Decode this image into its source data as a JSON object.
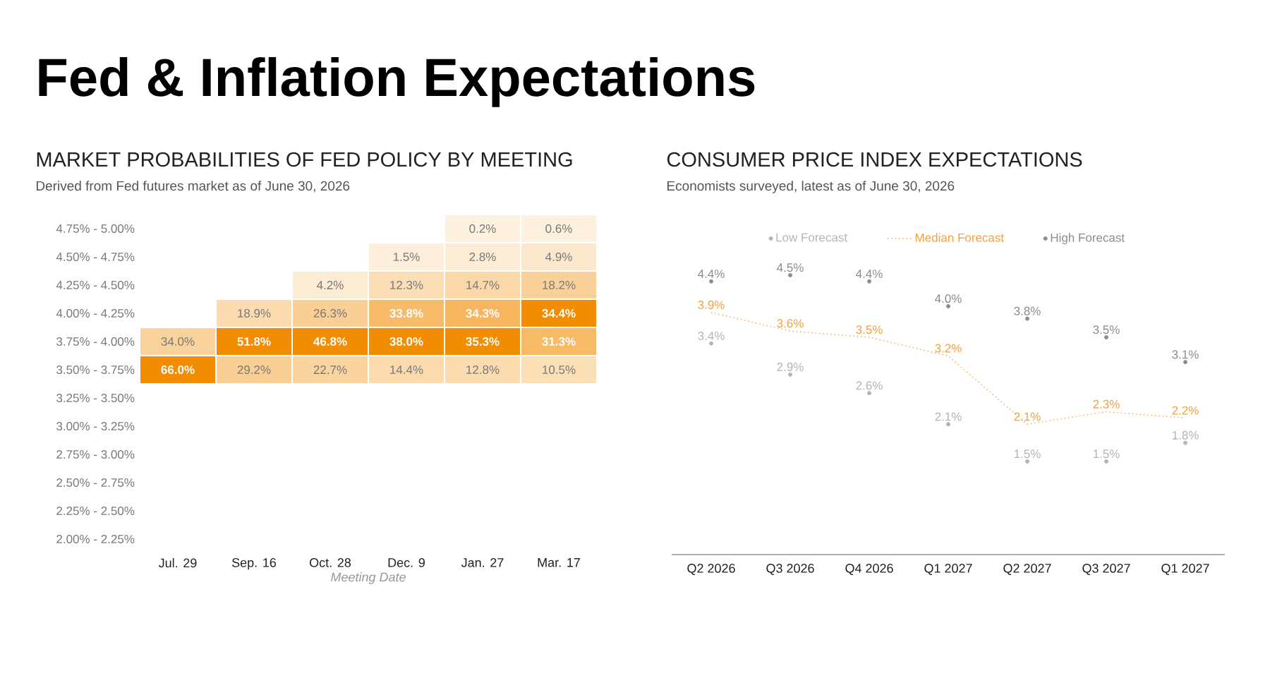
{
  "chart_data": [
    {
      "type": "heatmap",
      "title": "MARKET PROBABILITIES OF FED POLICY BY MEETING",
      "subtitle": "Derived from Fed futures market as of June 30, 2026",
      "xlabel": "Meeting Date",
      "annotations": [
        "Fed & Inflation Expectations"
      ],
      "color": "#f28c00",
      "categories": [
        "Jul. 29",
        "Sep. 16",
        "Oct. 28",
        "Dec. 9",
        "Jan. 27",
        "Mar. 17"
      ],
      "y_categories": [
        "4.75% - 5.00%",
        "4.50% - 4.75%",
        "4.25% - 4.50%",
        "4.00% - 4.25%",
        "3.75% - 4.00%",
        "3.50% - 3.75%",
        "3.25% - 3.50%",
        "3.00% - 3.25%",
        "2.75% - 3.00%",
        "2.50% - 2.75%",
        "2.25% - 2.50%",
        "2.00% - 2.25%"
      ],
      "cells": [
        [
          null,
          null,
          null,
          null,
          0.2,
          0.6
        ],
        [
          null,
          null,
          null,
          1.5,
          2.8,
          4.9
        ],
        [
          null,
          null,
          4.2,
          12.3,
          14.7,
          18.2
        ],
        [
          null,
          18.9,
          26.3,
          33.8,
          34.3,
          34.4
        ],
        [
          34.0,
          51.8,
          46.8,
          38.0,
          35.3,
          31.3
        ],
        [
          66.0,
          29.2,
          22.7,
          14.4,
          12.8,
          10.5
        ],
        [
          null,
          null,
          null,
          null,
          null,
          null
        ],
        [
          null,
          null,
          null,
          null,
          null,
          null
        ],
        [
          null,
          null,
          null,
          null,
          null,
          null
        ],
        [
          null,
          null,
          null,
          null,
          null,
          null
        ],
        [
          null,
          null,
          null,
          null,
          null,
          null
        ],
        [
          null,
          null,
          null,
          null,
          null,
          null
        ]
      ],
      "cell_labels": [
        [
          null,
          null,
          null,
          null,
          "0.2%",
          "0.6%"
        ],
        [
          null,
          null,
          null,
          "1.5%",
          "2.8%",
          "4.9%"
        ],
        [
          null,
          null,
          "4.2%",
          "12.3%",
          "14.7%",
          "18.2%"
        ],
        [
          null,
          "18.9%",
          "26.3%",
          "33.8%",
          "34.3%",
          "34.4%"
        ],
        [
          "34.0%",
          "51.8%",
          "46.8%",
          "38.0%",
          "35.3%",
          "31.3%"
        ],
        [
          "66.0%",
          "29.2%",
          "22.7%",
          "14.4%",
          "12.8%",
          "10.5%"
        ],
        [
          null,
          null,
          null,
          null,
          null,
          null
        ],
        [
          null,
          null,
          null,
          null,
          null,
          null
        ],
        [
          null,
          null,
          null,
          null,
          null,
          null
        ],
        [
          null,
          null,
          null,
          null,
          null,
          null
        ],
        [
          null,
          null,
          null,
          null,
          null,
          null
        ],
        [
          null,
          null,
          null,
          null,
          null,
          null
        ]
      ]
    },
    {
      "type": "line",
      "title": "CONSUMER PRICE INDEX EXPECTATIONS",
      "subtitle": "Economists surveyed, latest as of June 30, 2026",
      "categories": [
        "Q2 2026",
        "Q3 2026",
        "Q4 2026",
        "Q1 2027",
        "Q2 2027",
        "Q3 2027",
        "Q1 2027"
      ],
      "tick_labels": "x",
      "legend": "top",
      "series": [
        {
          "name": "Low Forecast",
          "type": "scatter",
          "marker": "circle",
          "color": "#b4b4b4",
          "values": [
            3.4,
            2.9,
            2.6,
            2.1,
            1.5,
            1.5,
            1.8
          ],
          "value_labels": [
            "3.4%",
            "2.9%",
            "2.6%",
            "2.1%",
            "1.5%",
            "1.5%",
            "1.8%"
          ]
        },
        {
          "name": "Median Forecast",
          "type": "line",
          "line_style": "dotted",
          "color": "#f5a040",
          "values": [
            3.9,
            3.6,
            3.5,
            3.2,
            2.1,
            2.3,
            2.2
          ],
          "value_labels": [
            "3.9%",
            "3.6%",
            "3.5%",
            "3.2%",
            "2.1%",
            "2.3%",
            "2.2%"
          ]
        },
        {
          "name": "High Forecast",
          "type": "scatter",
          "marker": "circle",
          "color": "#8c8c8c",
          "values": [
            4.4,
            4.5,
            4.4,
            4.0,
            3.8,
            3.5,
            3.1
          ],
          "value_labels": [
            "4.4%",
            "4.5%",
            "4.4%",
            "4.0%",
            "3.8%",
            "3.5%",
            "3.1%"
          ]
        }
      ]
    }
  ]
}
